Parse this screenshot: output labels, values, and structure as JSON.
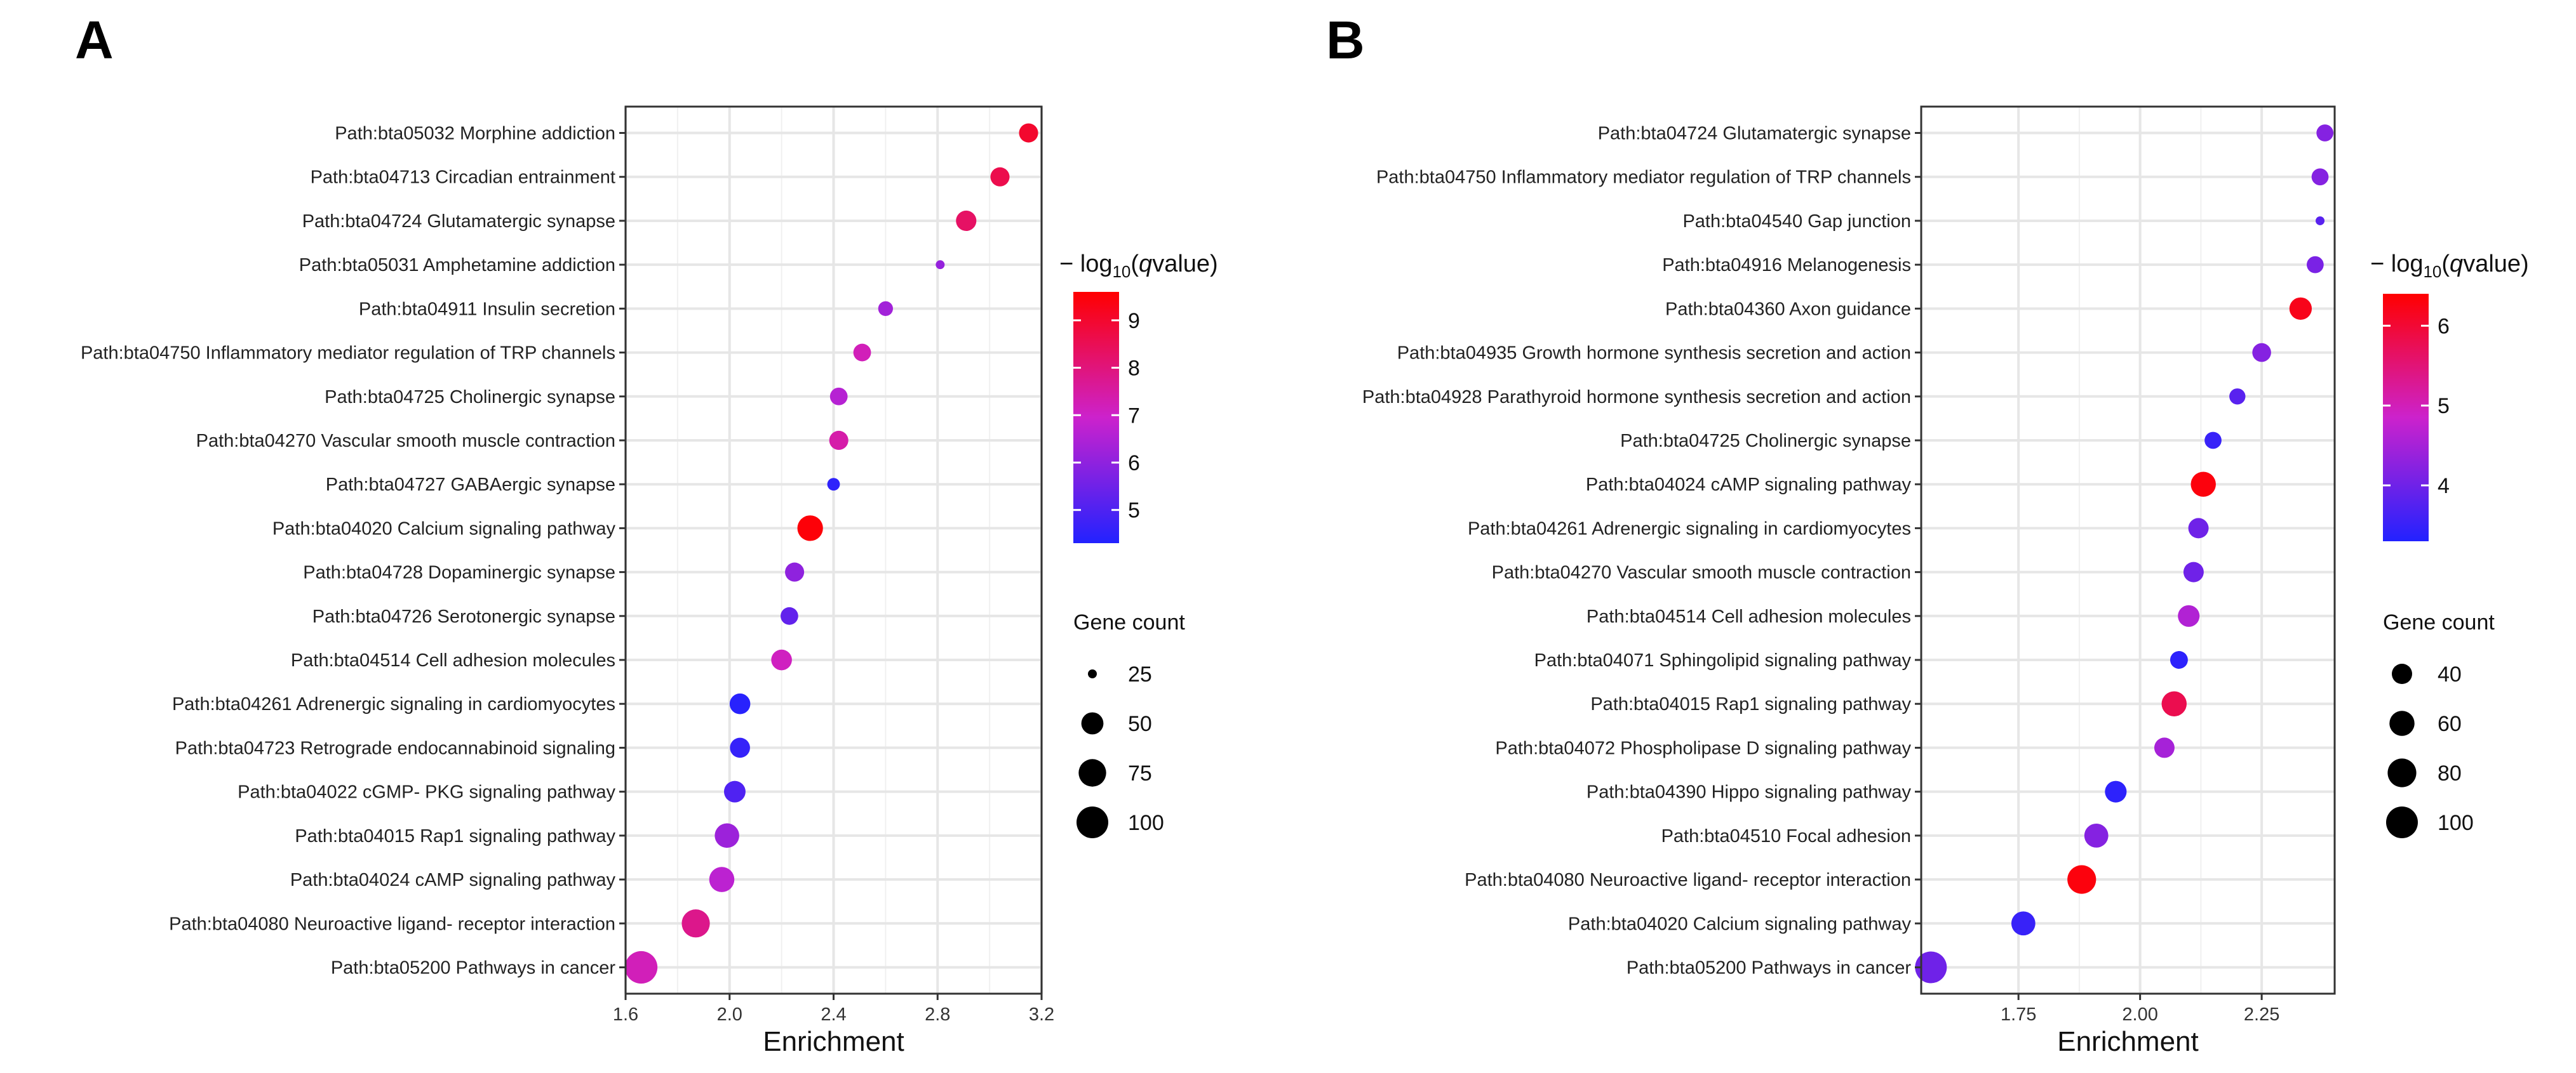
{
  "colors": {
    "high": "#ff0000",
    "mid": "#cc22cc",
    "low": "#2222ff",
    "grid": "#e6e6e6",
    "border": "#333333"
  },
  "chart_data": [
    {
      "type": "scatter",
      "panel": "A",
      "xlabel": "Enrichment",
      "ylabel": "",
      "xlim": [
        1.6,
        3.2
      ],
      "xticks": [
        1.6,
        2.0,
        2.4,
        2.8,
        3.2
      ],
      "xtick_labels": [
        "1.6",
        "2.0",
        "2.4",
        "2.8",
        "3.2"
      ],
      "color_legend": {
        "title_prefix": "− log",
        "title_sub": "10",
        "title_open": "(",
        "title_var": "q",
        "title_suffix": "value)",
        "min": 4.3,
        "max": 9.6,
        "ticks": [
          5,
          6,
          7,
          8,
          9
        ],
        "tick_labels": [
          "5",
          "6",
          "7",
          "8",
          "9"
        ]
      },
      "size_legend": {
        "title": "Gene count",
        "values": [
          25,
          50,
          75,
          100
        ],
        "labels": [
          "25",
          "50",
          "75",
          "100"
        ],
        "range": [
          25,
          100
        ]
      },
      "points": [
        {
          "label": "Path:bta05032 Morphine addiction",
          "x": 3.15,
          "q": 9.0,
          "count": 40
        },
        {
          "label": "Path:bta04713 Circadian entrainment",
          "x": 3.04,
          "q": 8.6,
          "count": 40
        },
        {
          "label": "Path:bta04724 Glutamatergic synapse",
          "x": 2.91,
          "q": 8.3,
          "count": 44
        },
        {
          "label": "Path:bta05031 Amphetamine addiction",
          "x": 2.81,
          "q": 6.1,
          "count": 15
        },
        {
          "label": "Path:bta04911 Insulin secretion",
          "x": 2.6,
          "q": 6.3,
          "count": 30
        },
        {
          "label": "Path:bta04750 Inflammatory mediator regulation of TRP channels",
          "x": 2.51,
          "q": 7.2,
          "count": 36
        },
        {
          "label": "Path:bta04725 Cholinergic synapse",
          "x": 2.42,
          "q": 6.6,
          "count": 36
        },
        {
          "label": "Path:bta04270 Vascular smooth muscle contraction",
          "x": 2.42,
          "q": 7.4,
          "count": 40
        },
        {
          "label": "Path:bta04727 GABAergic synapse",
          "x": 2.4,
          "q": 4.5,
          "count": 27
        },
        {
          "label": "Path:bta04020 Calcium signaling pathway",
          "x": 2.31,
          "q": 9.5,
          "count": 65
        },
        {
          "label": "Path:bta04728 Dopaminergic synapse",
          "x": 2.25,
          "q": 6.0,
          "count": 40
        },
        {
          "label": "Path:bta04726 Serotonergic synapse",
          "x": 2.23,
          "q": 5.3,
          "count": 36
        },
        {
          "label": "Path:bta04514 Cell adhesion molecules",
          "x": 2.2,
          "q": 7.1,
          "count": 45
        },
        {
          "label": "Path:bta04261 Adrenergic signaling in cardiomyocytes",
          "x": 2.04,
          "q": 4.4,
          "count": 45
        },
        {
          "label": "Path:bta04723 Retrograde endocannabinoid signaling",
          "x": 2.04,
          "q": 4.6,
          "count": 43
        },
        {
          "label": "Path:bta04022 cGMP- PKG signaling pathway",
          "x": 2.02,
          "q": 5.0,
          "count": 48
        },
        {
          "label": "Path:bta04015 Rap1 signaling pathway",
          "x": 1.99,
          "q": 6.2,
          "count": 60
        },
        {
          "label": "Path:bta04024 cAMP signaling pathway",
          "x": 1.97,
          "q": 6.7,
          "count": 63
        },
        {
          "label": "Path:bta04080 Neuroactive ligand- receptor interaction",
          "x": 1.87,
          "q": 7.8,
          "count": 78
        },
        {
          "label": "Path:bta05200 Pathways in cancer",
          "x": 1.66,
          "q": 7.2,
          "count": 105
        }
      ]
    },
    {
      "type": "scatter",
      "panel": "B",
      "xlabel": "Enrichment",
      "ylabel": "",
      "xlim": [
        1.55,
        2.4
      ],
      "xticks": [
        1.75,
        2.0,
        2.25
      ],
      "xtick_labels": [
        "1.75",
        "2.00",
        "2.25"
      ],
      "color_legend": {
        "title_prefix": "− log",
        "title_sub": "10",
        "title_open": "(",
        "title_var": "q",
        "title_suffix": "value)",
        "min": 3.3,
        "max": 6.4,
        "ticks": [
          4,
          5,
          6
        ],
        "tick_labels": [
          "4",
          "5",
          "6"
        ]
      },
      "size_legend": {
        "title": "Gene count",
        "values": [
          40,
          60,
          80,
          100
        ],
        "labels": [
          "40",
          "60",
          "80",
          "100"
        ],
        "range": [
          20,
          100
        ]
      },
      "points": [
        {
          "label": "Path:bta04724 Glutamatergic synapse",
          "x": 2.38,
          "q": 4.2,
          "count": 30
        },
        {
          "label": "Path:bta04750 Inflammatory mediator regulation of TRP channels",
          "x": 2.37,
          "q": 4.2,
          "count": 30
        },
        {
          "label": "Path:bta04540 Gap junction",
          "x": 2.37,
          "q": 3.8,
          "count": 20
        },
        {
          "label": "Path:bta04916 Melanogenesis",
          "x": 2.36,
          "q": 4.1,
          "count": 30
        },
        {
          "label": "Path:bta04360 Axon guidance",
          "x": 2.33,
          "q": 6.2,
          "count": 48
        },
        {
          "label": "Path:bta04935 Growth hormone synthesis secretion and action",
          "x": 2.25,
          "q": 4.2,
          "count": 35
        },
        {
          "label": "Path:bta04928 Parathyroid hormone synthesis secretion and action",
          "x": 2.2,
          "q": 3.8,
          "count": 28
        },
        {
          "label": "Path:bta04725 Cholinergic synapse",
          "x": 2.15,
          "q": 3.5,
          "count": 30
        },
        {
          "label": "Path:bta04024 cAMP signaling pathway",
          "x": 2.13,
          "q": 6.3,
          "count": 60
        },
        {
          "label": "Path:bta04261 Adrenergic signaling in cardiomyocytes",
          "x": 2.12,
          "q": 4.0,
          "count": 40
        },
        {
          "label": "Path:bta04270 Vascular smooth muscle contraction",
          "x": 2.11,
          "q": 4.0,
          "count": 40
        },
        {
          "label": "Path:bta04514 Cell adhesion molecules",
          "x": 2.1,
          "q": 4.6,
          "count": 45
        },
        {
          "label": "Path:bta04071 Sphingolipid signaling pathway",
          "x": 2.08,
          "q": 3.4,
          "count": 32
        },
        {
          "label": "Path:bta04015 Rap1 signaling pathway",
          "x": 2.07,
          "q": 5.8,
          "count": 60
        },
        {
          "label": "Path:bta04072 Phospholipase D signaling pathway",
          "x": 2.05,
          "q": 4.5,
          "count": 40
        },
        {
          "label": "Path:bta04390 Hippo signaling pathway",
          "x": 1.95,
          "q": 3.4,
          "count": 45
        },
        {
          "label": "Path:bta04510 Focal adhesion",
          "x": 1.91,
          "q": 4.2,
          "count": 55
        },
        {
          "label": "Path:bta04080 Neuroactive ligand- receptor interaction",
          "x": 1.88,
          "q": 6.3,
          "count": 80
        },
        {
          "label": "Path:bta04020 Calcium signaling pathway",
          "x": 1.76,
          "q": 3.5,
          "count": 55
        },
        {
          "label": "Path:bta05200 Pathways in cancer",
          "x": 1.57,
          "q": 4.0,
          "count": 100
        }
      ]
    }
  ]
}
